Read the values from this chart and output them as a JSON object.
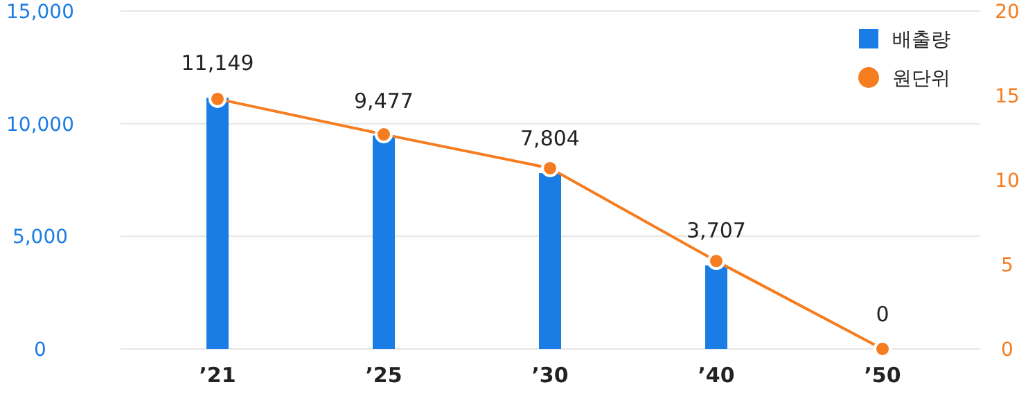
{
  "chart_data": {
    "type": "bar",
    "categories": [
      "’21",
      "’25",
      "’30",
      "’40",
      "’50"
    ],
    "series": [
      {
        "name": "배출량",
        "color": "#1a7de6",
        "values": [
          11149,
          9477,
          7804,
          3707,
          0
        ],
        "value_labels": [
          "11,149",
          "9,477",
          "7,804",
          "3,707",
          "0"
        ]
      },
      {
        "name": "원단위",
        "type": "line",
        "axis": "y2",
        "color": "#f57c1f",
        "marker": "circle",
        "values": [
          14.8,
          12.7,
          10.7,
          5.2,
          0
        ]
      }
    ],
    "ylim": [
      0,
      15000
    ],
    "yticks": [
      {
        "value": 0,
        "label": "0"
      },
      {
        "value": 5000,
        "label": "5,000"
      },
      {
        "value": 10000,
        "label": "10,000"
      },
      {
        "value": 15000,
        "label": "15,000"
      }
    ],
    "y2lim": [
      0,
      20
    ],
    "y2ticks": [
      0,
      5,
      10,
      15,
      20
    ],
    "grid": "y",
    "legend": "top right"
  }
}
